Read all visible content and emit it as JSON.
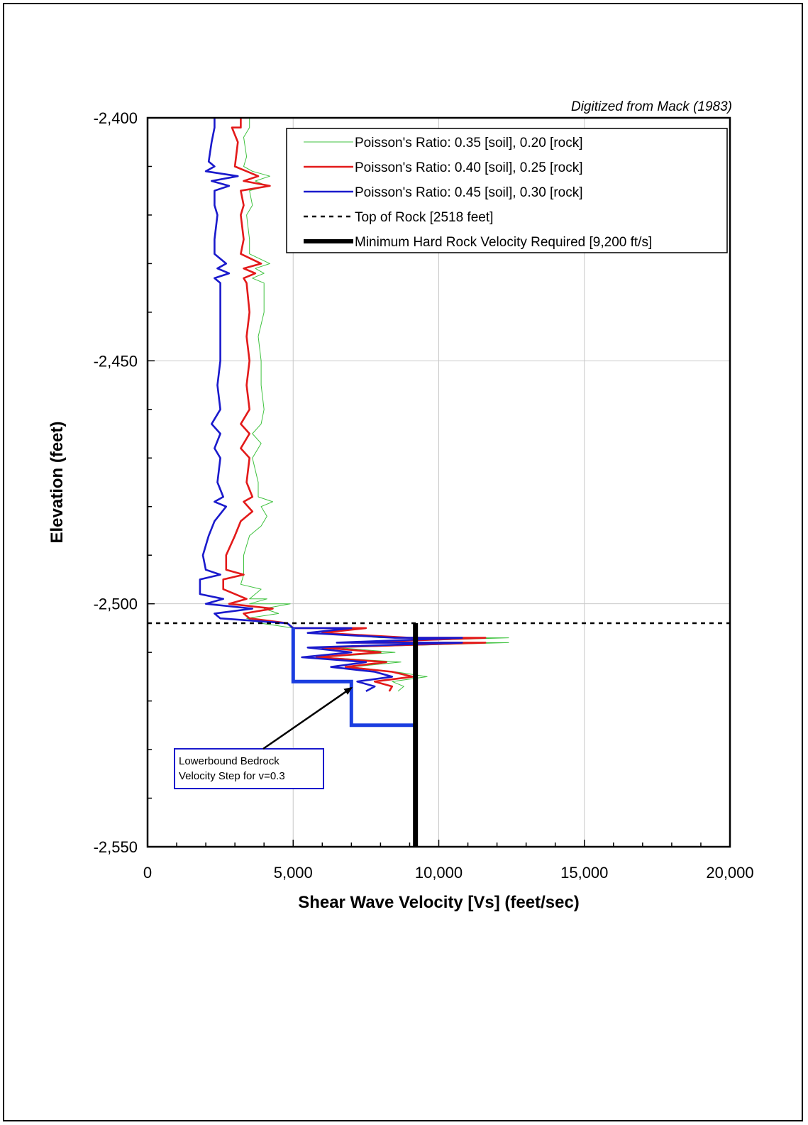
{
  "chart_data": {
    "type": "line",
    "orientation": "depth-profile",
    "xlabel": "Shear Wave Velocity [Vs] (feet/sec)",
    "ylabel": "Elevation (feet)",
    "note": "Digitized from Mack (1983)",
    "xlim": [
      0,
      20000
    ],
    "ylim": [
      -2550,
      -2400
    ],
    "x_ticks": [
      0,
      5000,
      10000,
      15000,
      20000
    ],
    "x_tick_labels": [
      "0",
      "5,000",
      "10,000",
      "15,000",
      "20,000"
    ],
    "y_ticks": [
      -2400,
      -2450,
      -2500,
      -2550
    ],
    "y_tick_labels": [
      "-2,400",
      "-2,450",
      "-2,500",
      "-2,550"
    ],
    "grid": true,
    "legend_position": "top-right",
    "colors": {
      "green": "#3fc23f",
      "red": "#e31a1a",
      "blue": "#1a1acc",
      "black": "#000000"
    },
    "series": [
      {
        "name": "Poisson's Ratio: 0.35 [soil], 0.20 [rock]",
        "color": "#3fc23f",
        "points": [
          [
            3500,
            -2400
          ],
          [
            3500,
            -2402
          ],
          [
            3300,
            -2404
          ],
          [
            3400,
            -2408
          ],
          [
            3300,
            -2410
          ],
          [
            3600,
            -2411
          ],
          [
            4200,
            -2412
          ],
          [
            3700,
            -2413
          ],
          [
            4100,
            -2414
          ],
          [
            3500,
            -2415
          ],
          [
            3600,
            -2418
          ],
          [
            3400,
            -2420
          ],
          [
            3500,
            -2425
          ],
          [
            3500,
            -2428
          ],
          [
            4200,
            -2430
          ],
          [
            3700,
            -2431
          ],
          [
            4000,
            -2432
          ],
          [
            3600,
            -2433
          ],
          [
            4000,
            -2434
          ],
          [
            4000,
            -2440
          ],
          [
            3800,
            -2445
          ],
          [
            3900,
            -2450
          ],
          [
            3900,
            -2455
          ],
          [
            4000,
            -2460
          ],
          [
            3900,
            -2463
          ],
          [
            3600,
            -2465
          ],
          [
            3900,
            -2467
          ],
          [
            3600,
            -2470
          ],
          [
            3800,
            -2475
          ],
          [
            3800,
            -2478
          ],
          [
            4300,
            -2479
          ],
          [
            3900,
            -2480
          ],
          [
            4100,
            -2482
          ],
          [
            3900,
            -2484
          ],
          [
            3500,
            -2486
          ],
          [
            3300,
            -2490
          ],
          [
            3300,
            -2494
          ],
          [
            3200,
            -2496
          ],
          [
            3900,
            -2497
          ],
          [
            3500,
            -2499
          ],
          [
            4100,
            -2499
          ],
          [
            3500,
            -2500
          ],
          [
            4900,
            -2500
          ],
          [
            4000,
            -2501
          ],
          [
            4500,
            -2502
          ],
          [
            3400,
            -2503
          ],
          [
            3900,
            -2504
          ],
          [
            5000,
            -2505
          ],
          [
            7000,
            -2505
          ],
          [
            6000,
            -2506
          ],
          [
            8000,
            -2507
          ],
          [
            12400,
            -2507
          ],
          [
            7000,
            -2508
          ],
          [
            12400,
            -2508
          ],
          [
            6500,
            -2509
          ],
          [
            8500,
            -2510
          ],
          [
            6000,
            -2511
          ],
          [
            8700,
            -2512
          ],
          [
            7000,
            -2513
          ],
          [
            8500,
            -2514
          ],
          [
            9600,
            -2515
          ],
          [
            8400,
            -2516
          ],
          [
            8800,
            -2517
          ],
          [
            8600,
            -2518
          ]
        ]
      },
      {
        "name": "Poisson's Ratio: 0.40 [soil], 0.25 [rock]",
        "color": "#e31a1a",
        "points": [
          [
            3200,
            -2400
          ],
          [
            3200,
            -2402
          ],
          [
            2900,
            -2402
          ],
          [
            3100,
            -2405
          ],
          [
            3000,
            -2410
          ],
          [
            3400,
            -2411
          ],
          [
            3800,
            -2412
          ],
          [
            3300,
            -2413
          ],
          [
            4200,
            -2414
          ],
          [
            3200,
            -2415
          ],
          [
            3300,
            -2418
          ],
          [
            3200,
            -2420
          ],
          [
            3300,
            -2425
          ],
          [
            3200,
            -2428
          ],
          [
            3900,
            -2430
          ],
          [
            3300,
            -2431
          ],
          [
            3700,
            -2432
          ],
          [
            3300,
            -2433
          ],
          [
            3400,
            -2434
          ],
          [
            3500,
            -2440
          ],
          [
            3400,
            -2445
          ],
          [
            3500,
            -2450
          ],
          [
            3400,
            -2455
          ],
          [
            3500,
            -2460
          ],
          [
            3200,
            -2463
          ],
          [
            3500,
            -2465
          ],
          [
            3200,
            -2468
          ],
          [
            3500,
            -2470
          ],
          [
            3400,
            -2475
          ],
          [
            3600,
            -2478
          ],
          [
            3300,
            -2479
          ],
          [
            3600,
            -2481
          ],
          [
            3200,
            -2483
          ],
          [
            3000,
            -2486
          ],
          [
            2700,
            -2490
          ],
          [
            2700,
            -2493
          ],
          [
            3300,
            -2494
          ],
          [
            2600,
            -2495
          ],
          [
            2600,
            -2497
          ],
          [
            3400,
            -2499
          ],
          [
            2800,
            -2500
          ],
          [
            4300,
            -2501
          ],
          [
            3300,
            -2502
          ],
          [
            3500,
            -2503
          ],
          [
            4800,
            -2504
          ],
          [
            5000,
            -2505
          ],
          [
            7500,
            -2505
          ],
          [
            6000,
            -2506
          ],
          [
            9000,
            -2507
          ],
          [
            11600,
            -2507
          ],
          [
            7000,
            -2508
          ],
          [
            11600,
            -2508
          ],
          [
            6000,
            -2509
          ],
          [
            8000,
            -2510
          ],
          [
            5800,
            -2511
          ],
          [
            8200,
            -2512
          ],
          [
            6800,
            -2513
          ],
          [
            8400,
            -2514
          ],
          [
            9100,
            -2515
          ],
          [
            7800,
            -2516
          ],
          [
            8400,
            -2517
          ],
          [
            8300,
            -2518
          ]
        ]
      },
      {
        "name": "Poisson's Ratio: 0.45 [soil], 0.30 [rock]",
        "color": "#1a1acc",
        "points": [
          [
            2300,
            -2400
          ],
          [
            2300,
            -2402
          ],
          [
            2200,
            -2405
          ],
          [
            2100,
            -2409
          ],
          [
            2300,
            -2410
          ],
          [
            2000,
            -2411
          ],
          [
            3100,
            -2412
          ],
          [
            2200,
            -2413
          ],
          [
            2800,
            -2414
          ],
          [
            2300,
            -2415
          ],
          [
            2300,
            -2418
          ],
          [
            2400,
            -2420
          ],
          [
            2300,
            -2425
          ],
          [
            2300,
            -2428
          ],
          [
            2700,
            -2430
          ],
          [
            2400,
            -2431
          ],
          [
            2800,
            -2432
          ],
          [
            2300,
            -2433
          ],
          [
            2500,
            -2434
          ],
          [
            2500,
            -2440
          ],
          [
            2500,
            -2445
          ],
          [
            2500,
            -2450
          ],
          [
            2400,
            -2455
          ],
          [
            2500,
            -2460
          ],
          [
            2200,
            -2463
          ],
          [
            2500,
            -2465
          ],
          [
            2300,
            -2468
          ],
          [
            2500,
            -2470
          ],
          [
            2400,
            -2475
          ],
          [
            2600,
            -2478
          ],
          [
            2300,
            -2479
          ],
          [
            2700,
            -2480
          ],
          [
            2300,
            -2483
          ],
          [
            2100,
            -2486
          ],
          [
            1900,
            -2490
          ],
          [
            2000,
            -2493
          ],
          [
            2500,
            -2494
          ],
          [
            1800,
            -2495
          ],
          [
            1800,
            -2498
          ],
          [
            2600,
            -2499
          ],
          [
            2000,
            -2500
          ],
          [
            3600,
            -2501
          ],
          [
            2300,
            -2502
          ],
          [
            2500,
            -2503
          ],
          [
            4800,
            -2504
          ],
          [
            5000,
            -2505
          ],
          [
            7000,
            -2505
          ],
          [
            5500,
            -2506
          ],
          [
            8500,
            -2507
          ],
          [
            10800,
            -2507
          ],
          [
            6500,
            -2508
          ],
          [
            10800,
            -2508
          ],
          [
            5500,
            -2509
          ],
          [
            7000,
            -2510
          ],
          [
            5300,
            -2511
          ],
          [
            7500,
            -2512
          ],
          [
            6300,
            -2513
          ],
          [
            7800,
            -2514
          ],
          [
            8400,
            -2515
          ],
          [
            7200,
            -2516
          ],
          [
            7800,
            -2517
          ],
          [
            7500,
            -2518
          ]
        ]
      },
      {
        "name": "Top of Rock [2518 feet]",
        "color": "#000000",
        "points": [
          [
            0,
            -2504
          ],
          [
            20000,
            -2504
          ]
        ]
      },
      {
        "name": "Minimum Hard Rock Velocity Required [9,200 ft/s]",
        "color": "#000000",
        "points": [
          [
            9200,
            -2504
          ],
          [
            9200,
            -2550
          ]
        ]
      }
    ],
    "lowerbound_step": {
      "color": "#1a3de0",
      "points": [
        [
          5000,
          -2505
        ],
        [
          5000,
          -2516
        ],
        [
          7000,
          -2516
        ],
        [
          7000,
          -2525
        ],
        [
          9200,
          -2525
        ]
      ]
    },
    "annotation": {
      "lines": [
        "Lowerbound  Bedrock",
        "Velocity Step for v=0.3"
      ],
      "arrow_target": [
        7100,
        -2517
      ]
    }
  }
}
